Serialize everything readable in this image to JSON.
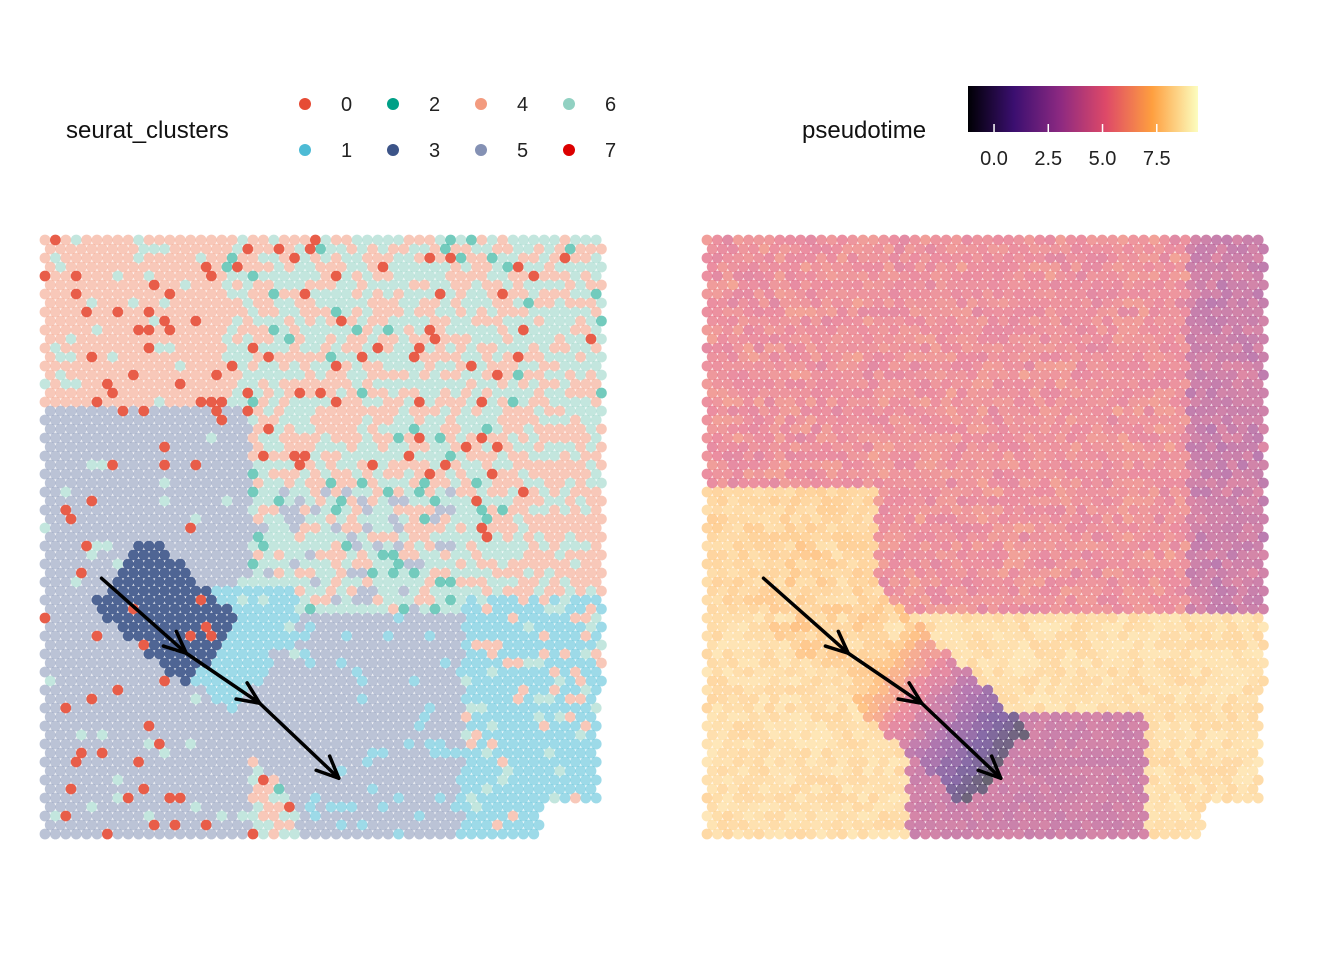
{
  "chart_data": [
    {
      "type": "scatter",
      "subtype": "spatial-spot-map",
      "legend": {
        "title": "seurat_clusters",
        "placement": "top",
        "entries": [
          {
            "label": "0",
            "color": "#E64B35"
          },
          {
            "label": "1",
            "color": "#4DBBD5"
          },
          {
            "label": "2",
            "color": "#00A087"
          },
          {
            "label": "3",
            "color": "#3C5488"
          },
          {
            "label": "4",
            "color": "#F39B7F"
          },
          {
            "label": "5",
            "color": "#8491B4"
          },
          {
            "label": "6",
            "color": "#91D1C2"
          },
          {
            "label": "7",
            "color": "#DC0000"
          }
        ]
      },
      "trajectory_arrows": [
        {
          "from": [
            0.1,
            0.57
          ],
          "to": [
            0.25,
            0.69
          ]
        },
        {
          "from": [
            0.25,
            0.69
          ],
          "to": [
            0.38,
            0.77
          ]
        },
        {
          "from": [
            0.38,
            0.77
          ],
          "to": [
            0.52,
            0.89
          ]
        }
      ],
      "grid": false,
      "axes": false
    },
    {
      "type": "scatter",
      "subtype": "spatial-spot-map",
      "legend": {
        "title": "pseudotime",
        "type": "colorbar",
        "placement": "top",
        "palette": "inferno-like",
        "ticks": [
          "0.0",
          "2.5",
          "5.0",
          "7.5"
        ],
        "tick_values": [
          0.0,
          2.5,
          5.0,
          7.5
        ],
        "range": [
          -1.2,
          9.4
        ],
        "colors": [
          "#000004",
          "#3B0F70",
          "#8C2981",
          "#DE4968",
          "#FE9F3F",
          "#FCFDBF"
        ]
      },
      "trajectory_arrows": [
        {
          "from": [
            0.1,
            0.57
          ],
          "to": [
            0.25,
            0.69
          ]
        },
        {
          "from": [
            0.25,
            0.69
          ],
          "to": [
            0.38,
            0.77
          ]
        },
        {
          "from": [
            0.38,
            0.77
          ],
          "to": [
            0.52,
            0.89
          ]
        }
      ],
      "grid": false,
      "axes": false
    }
  ]
}
